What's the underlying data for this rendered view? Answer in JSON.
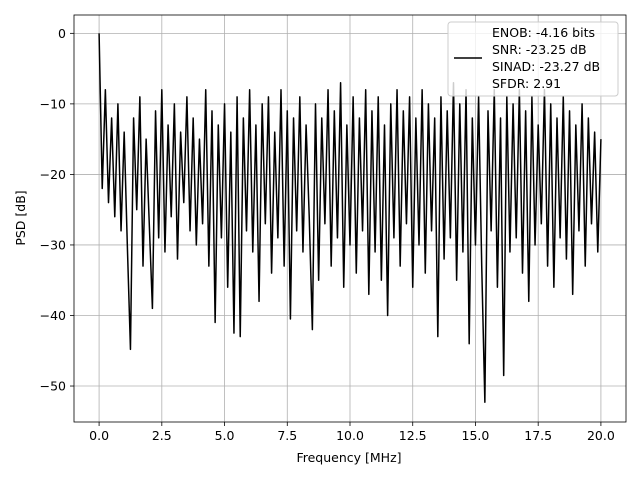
{
  "chart_data": {
    "type": "line",
    "xlabel": "Frequency [MHz]",
    "ylabel": "PSD [dB]",
    "grid": true,
    "legend": "upper right",
    "xlim": [
      -1,
      21
    ],
    "ylim": [
      -55.1,
      2.6
    ],
    "xticks": [
      {
        "value": 0,
        "label": "0.0"
      },
      {
        "value": 2.5,
        "label": "2.5"
      },
      {
        "value": 5,
        "label": "5.0"
      },
      {
        "value": 7.5,
        "label": "7.5"
      },
      {
        "value": 10,
        "label": "10.0"
      },
      {
        "value": 12.5,
        "label": "12.5"
      },
      {
        "value": 15,
        "label": "15.0"
      },
      {
        "value": 17.5,
        "label": "17.5"
      },
      {
        "value": 20,
        "label": "20.0"
      }
    ],
    "yticks": [
      0,
      {
        "value": -10,
        "label": "−10"
      },
      {
        "value": -20,
        "label": "−20"
      },
      {
        "value": -30,
        "label": "−30"
      },
      {
        "value": -40,
        "label": "−40"
      },
      {
        "value": -50,
        "label": "−50"
      }
    ],
    "x": [
      0,
      0.125,
      0.25,
      0.375,
      0.5,
      0.625,
      0.75,
      0.875,
      1,
      1.125,
      1.25,
      1.375,
      1.5,
      1.625,
      1.75,
      1.875,
      2,
      2.125,
      2.25,
      2.375,
      2.5,
      2.625,
      2.75,
      2.875,
      3,
      3.125,
      3.25,
      3.375,
      3.5,
      3.625,
      3.75,
      3.875,
      4,
      4.125,
      4.25,
      4.375,
      4.5,
      4.625,
      4.75,
      4.875,
      5,
      5.125,
      5.25,
      5.375,
      5.5,
      5.625,
      5.75,
      5.875,
      6,
      6.125,
      6.25,
      6.375,
      6.5,
      6.625,
      6.75,
      6.875,
      7,
      7.125,
      7.25,
      7.375,
      7.5,
      7.625,
      7.75,
      7.875,
      8,
      8.125,
      8.25,
      8.375,
      8.5,
      8.625,
      8.75,
      8.875,
      9,
      9.125,
      9.25,
      9.375,
      9.5,
      9.625,
      9.75,
      9.875,
      10,
      10.125,
      10.25,
      10.375,
      10.5,
      10.625,
      10.75,
      10.875,
      11,
      11.125,
      11.25,
      11.375,
      11.5,
      11.625,
      11.75,
      11.875,
      12,
      12.125,
      12.25,
      12.375,
      12.5,
      12.625,
      12.75,
      12.875,
      13,
      13.125,
      13.25,
      13.375,
      13.5,
      13.625,
      13.75,
      13.875,
      14,
      14.125,
      14.25,
      14.375,
      14.5,
      14.625,
      14.75,
      14.875,
      15,
      15.125,
      15.25,
      15.375,
      15.5,
      15.625,
      15.75,
      15.875,
      16,
      16.125,
      16.25,
      16.375,
      16.5,
      16.625,
      16.75,
      16.875,
      17,
      17.125,
      17.25,
      17.375,
      17.5,
      17.625,
      17.75,
      17.875,
      18,
      18.125,
      18.25,
      18.375,
      18.5,
      18.625,
      18.75,
      18.875,
      19,
      19.125,
      19.25,
      19.375,
      19.5,
      19.625,
      19.75,
      19.875,
      20
    ],
    "series": [
      {
        "name": "ENOB: -4.16 bits\nSNR: -23.25 dB\nSINAD: -23.27 dB\nSFDR: 2.91",
        "color": "#000000",
        "values": [
          0,
          -22,
          -8,
          -24,
          -12,
          -26,
          -10,
          -28,
          -14,
          -30,
          -44.8,
          -12,
          -25,
          -9,
          -33,
          -15,
          -27,
          -39,
          -11,
          -29,
          -8,
          -31,
          -13,
          -26,
          -10,
          -32,
          -14,
          -24,
          -9,
          -28,
          -12,
          -30,
          -15,
          -27,
          -8,
          -33,
          -11,
          -41,
          -13,
          -29,
          -10,
          -36,
          -14,
          -42.5,
          -9,
          -43,
          -12,
          -28,
          -8,
          -31,
          -13,
          -38,
          -10,
          -27,
          -9,
          -34,
          -14,
          -29,
          -8,
          -33,
          -11,
          -40.5,
          -12,
          -28,
          -9,
          -31,
          -13,
          -26,
          -42,
          -10,
          -35,
          -12,
          -27,
          -8,
          -33,
          -11,
          -29,
          -7,
          -36,
          -13,
          -30,
          -9,
          -34,
          -12,
          -28,
          -8,
          -37,
          -11,
          -31,
          -9,
          -35,
          -13,
          -40,
          -10,
          -29,
          -8,
          -33,
          -11,
          -27,
          -9,
          -36,
          -12,
          -30,
          -8,
          -34,
          -10,
          -28,
          -12,
          -43,
          -9,
          -32,
          -11,
          -29,
          -7,
          -35,
          -10,
          -31,
          -8,
          -44,
          -12,
          -30,
          -9,
          -33,
          -52.3,
          -11,
          -28,
          -8,
          -36,
          -12,
          -48.5,
          -9,
          -31,
          -10,
          -29,
          -8,
          -34,
          -11,
          -38,
          -9,
          -30,
          -13,
          -27,
          -8,
          -33,
          -10,
          -36,
          -12,
          -29,
          -9,
          -32,
          -11,
          -37,
          -13,
          -28,
          -10,
          -33,
          -12,
          -27,
          -14,
          -31,
          -15
        ]
      }
    ]
  }
}
